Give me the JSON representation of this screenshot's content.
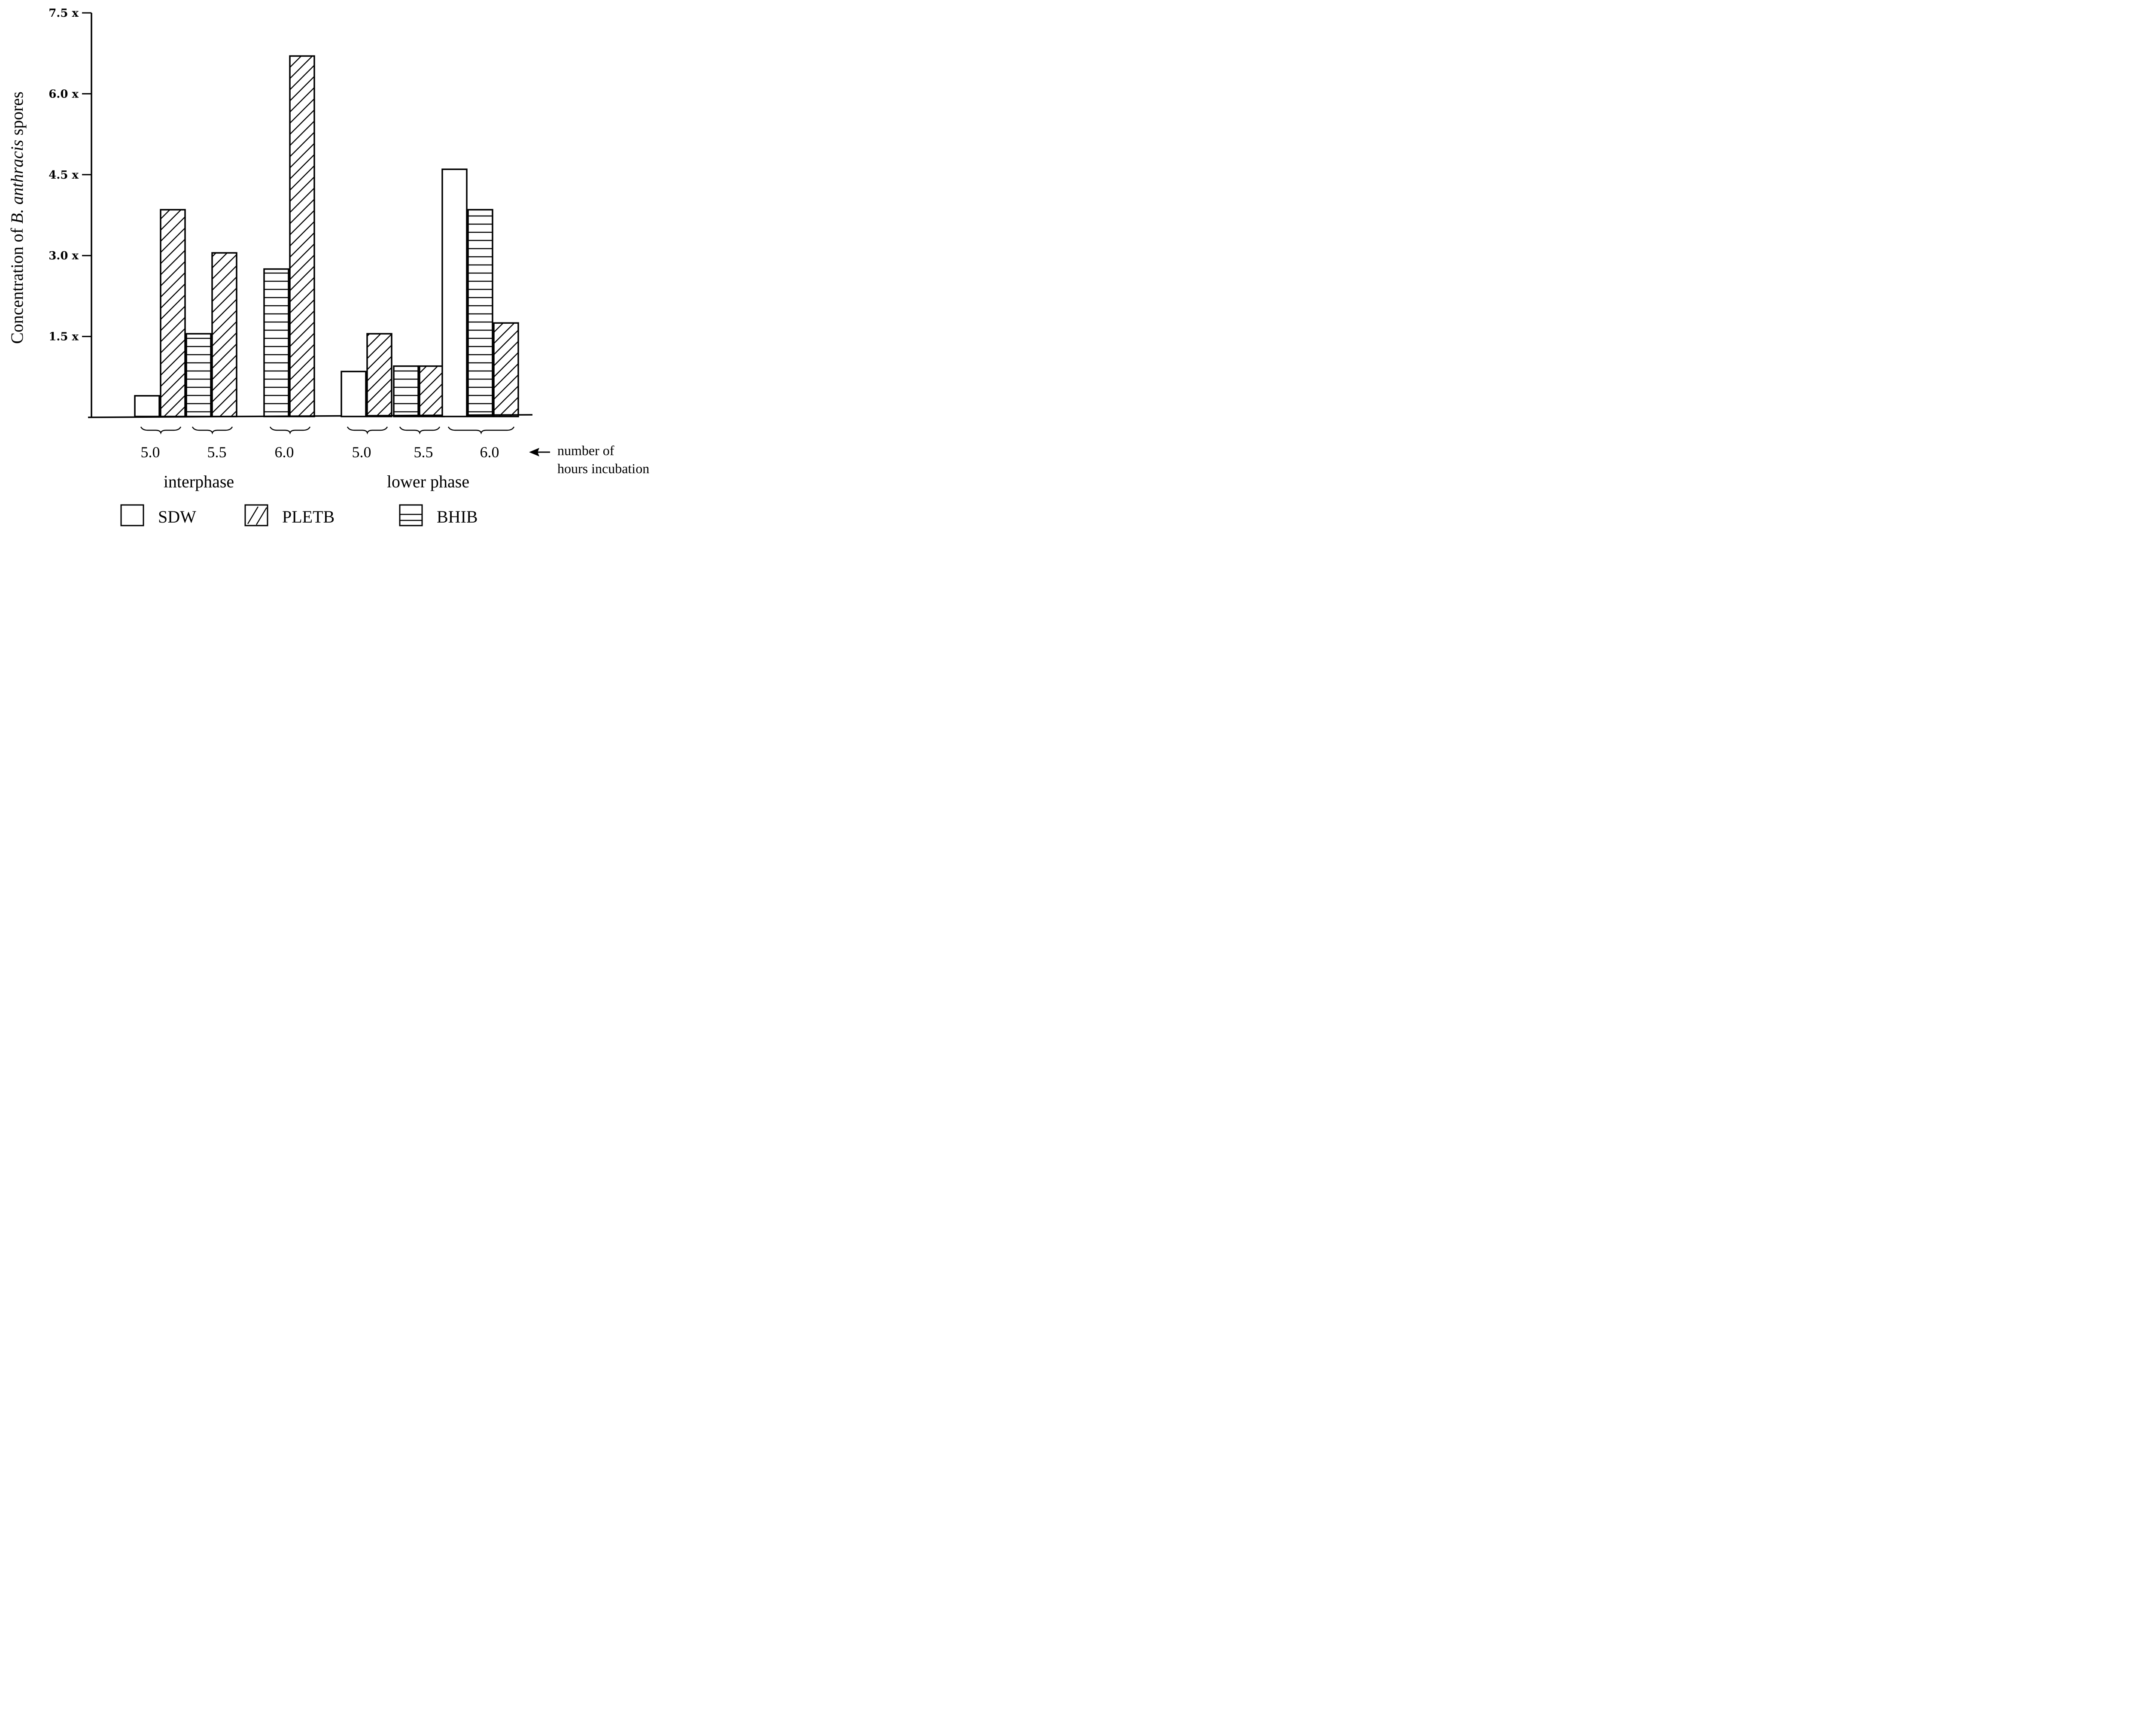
{
  "chart_data": {
    "type": "bar",
    "title": "",
    "ylabel": {
      "prefix": "Concentration of ",
      "italic": "B. anthracis",
      "suffix": " spores"
    },
    "ylim": [
      0,
      7.5
    ],
    "yticks": [
      {
        "value": 1.5,
        "label": "1.5 x"
      },
      {
        "value": 3.0,
        "label": "3.0 x"
      },
      {
        "value": 4.5,
        "label": "4.5 x"
      },
      {
        "value": 6.0,
        "label": "6.0 x"
      },
      {
        "value": 7.5,
        "label": "7.5 x"
      }
    ],
    "legend_position": "bottom",
    "series": [
      {
        "name": "SDW",
        "pattern": "empty"
      },
      {
        "name": "PLETB",
        "pattern": "diagonal"
      },
      {
        "name": "BHIB",
        "pattern": "horizontal"
      }
    ],
    "phases": [
      {
        "label": "interphase",
        "groups": [
          {
            "label": "5.0",
            "bars": [
              {
                "series": "SDW",
                "value": 0.4
              },
              {
                "series": "PLETB",
                "value": 3.85
              }
            ]
          },
          {
            "label": "5.5",
            "bars": [
              {
                "series": "BHIB",
                "value": 1.55
              },
              {
                "series": "PLETB",
                "value": 3.05
              }
            ]
          },
          {
            "label": "6.0",
            "bars": [
              {
                "series": "BHIB",
                "value": 2.75
              },
              {
                "series": "PLETB",
                "value": 6.7
              }
            ]
          }
        ]
      },
      {
        "label": "lower phase",
        "groups": [
          {
            "label": "5.0",
            "bars": [
              {
                "series": "SDW",
                "value": 0.85
              },
              {
                "series": "PLETB",
                "value": 1.55
              }
            ]
          },
          {
            "label": "5.5",
            "bars": [
              {
                "series": "BHIB",
                "value": 0.95
              },
              {
                "series": "PLETB",
                "value": 0.95
              }
            ]
          },
          {
            "label": "6.0",
            "bars": [
              {
                "series": "SDW",
                "value": 4.6
              },
              {
                "series": "BHIB",
                "value": 3.85
              },
              {
                "series": "PLETB",
                "value": 1.75
              }
            ]
          }
        ]
      }
    ],
    "x_annotation": [
      "number of",
      "hours incubation"
    ]
  }
}
